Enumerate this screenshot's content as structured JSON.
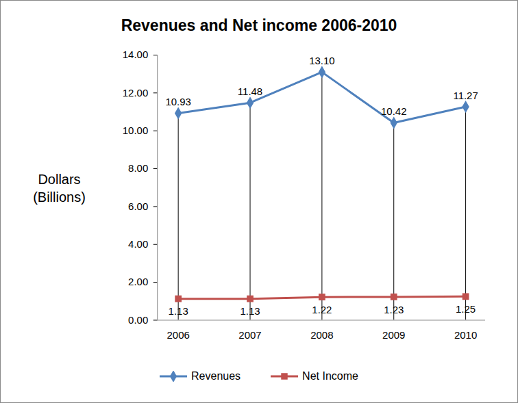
{
  "chart_data": {
    "type": "line",
    "title": "Revenues and Net income 2006-2010",
    "y_label": "Dollars (Billions)",
    "categories": [
      "2006",
      "2007",
      "2008",
      "2009",
      "2010"
    ],
    "series": [
      {
        "name": "Revenues",
        "color": "#4F81BD",
        "marker": "diamond",
        "values": [
          10.93,
          11.48,
          13.1,
          10.42,
          11.27
        ],
        "value_labels": [
          "10.93",
          "11.48",
          "13.10",
          "10.42",
          "11.27"
        ]
      },
      {
        "name": "Net Income",
        "color": "#C0504D",
        "marker": "square",
        "values": [
          1.13,
          1.13,
          1.22,
          1.23,
          1.25
        ]
      }
    ],
    "ylim": [
      0,
      14
    ],
    "yticks": [
      {
        "value": 0,
        "label": "0.00"
      },
      {
        "value": 2,
        "label": "2.00"
      },
      {
        "value": 4,
        "label": "4.00"
      },
      {
        "value": 6,
        "label": "6.00"
      },
      {
        "value": 8,
        "label": "8.00"
      },
      {
        "value": 10,
        "label": "10.00"
      },
      {
        "value": 12,
        "label": "12.00"
      },
      {
        "value": 14,
        "label": "14.00"
      }
    ],
    "grid": false,
    "data_labels": true,
    "legend": "bottom"
  }
}
